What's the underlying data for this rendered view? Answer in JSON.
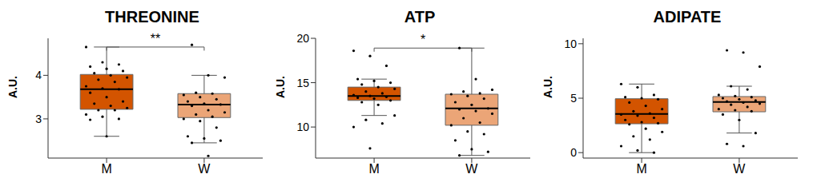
{
  "chart_data": [
    {
      "type": "box",
      "title": "THREONINE",
      "ylabel": "A.U.",
      "categories": [
        "M",
        "W"
      ],
      "ylim": [
        2.1,
        4.85
      ],
      "yticks": [
        3,
        4
      ],
      "grid": false,
      "annotation": "**",
      "series": [
        {
          "name": "M",
          "color": "#d35400",
          "min": 2.6,
          "q1": 3.22,
          "median": 3.68,
          "q3": 4.02,
          "max": 4.65,
          "points": [
            4.65,
            4.3,
            4.25,
            4.2,
            4.15,
            4.1,
            4.05,
            4.0,
            3.95,
            3.9,
            3.85,
            3.75,
            3.7,
            3.68,
            3.6,
            3.5,
            3.4,
            3.35,
            3.3,
            3.25,
            3.2,
            3.2,
            3.1,
            3.05,
            3.0,
            2.98,
            2.6
          ]
        },
        {
          "name": "W",
          "color": "#eba577",
          "min": 2.45,
          "q1": 3.03,
          "median": 3.33,
          "q3": 3.58,
          "max": 4.0,
          "points": [
            4.7,
            4.0,
            3.95,
            3.6,
            3.58,
            3.55,
            3.5,
            3.45,
            3.4,
            3.35,
            3.33,
            3.3,
            3.2,
            3.15,
            3.1,
            3.05,
            3.0,
            2.95,
            2.8,
            2.6,
            2.55,
            2.5,
            2.45,
            2.15
          ]
        }
      ]
    },
    {
      "type": "box",
      "title": "ATP",
      "ylabel": "A.U.",
      "categories": [
        "M",
        "W"
      ],
      "ylim": [
        6.5,
        20
      ],
      "yticks": [
        10,
        15,
        20
      ],
      "grid": false,
      "annotation": "*",
      "series": [
        {
          "name": "M",
          "color": "#d35400",
          "min": 11.3,
          "q1": 13.0,
          "median": 13.5,
          "q3": 14.5,
          "max": 15.4,
          "points": [
            18.6,
            18.0,
            16.9,
            15.4,
            15.2,
            15.0,
            14.8,
            14.5,
            14.3,
            14.0,
            13.8,
            13.6,
            13.5,
            13.4,
            13.3,
            13.2,
            13.0,
            12.8,
            12.5,
            11.3,
            10.8,
            10.4,
            10.0,
            7.6
          ]
        },
        {
          "name": "W",
          "color": "#eba577",
          "min": 6.8,
          "q1": 10.2,
          "median": 12.1,
          "q3": 13.7,
          "max": 18.9,
          "points": [
            18.9,
            15.4,
            14.2,
            14.0,
            13.8,
            13.7,
            13.5,
            13.2,
            12.8,
            12.5,
            12.1,
            12.0,
            11.8,
            11.5,
            11.0,
            10.5,
            10.2,
            9.5,
            9.2,
            8.5,
            7.5,
            7.2,
            6.8
          ]
        }
      ]
    },
    {
      "type": "box",
      "title": "ADIPATE",
      "ylabel": "A.U.",
      "categories": [
        "M",
        "W"
      ],
      "ylim": [
        -0.5,
        10.5
      ],
      "yticks": [
        0,
        5,
        10
      ],
      "grid": false,
      "series": [
        {
          "name": "M",
          "color": "#d35400",
          "min": 0.0,
          "q1": 2.65,
          "median": 3.55,
          "q3": 4.95,
          "max": 6.3,
          "points": [
            6.3,
            6.0,
            5.3,
            5.1,
            5.0,
            4.9,
            4.6,
            4.3,
            4.0,
            3.8,
            3.6,
            3.5,
            3.4,
            3.2,
            3.0,
            2.8,
            2.7,
            2.6,
            2.2,
            1.9,
            1.5,
            1.2,
            0.6,
            0.2,
            0.0
          ]
        },
        {
          "name": "W",
          "color": "#eba577",
          "min": 1.8,
          "q1": 3.75,
          "median": 4.65,
          "q3": 5.15,
          "max": 6.1,
          "points": [
            9.4,
            9.2,
            7.9,
            6.1,
            5.8,
            5.3,
            5.2,
            5.1,
            5.0,
            4.9,
            4.8,
            4.7,
            4.6,
            4.5,
            4.4,
            4.2,
            4.0,
            3.9,
            3.8,
            3.5,
            3.0,
            1.8,
            0.8,
            0.6
          ]
        }
      ]
    }
  ]
}
